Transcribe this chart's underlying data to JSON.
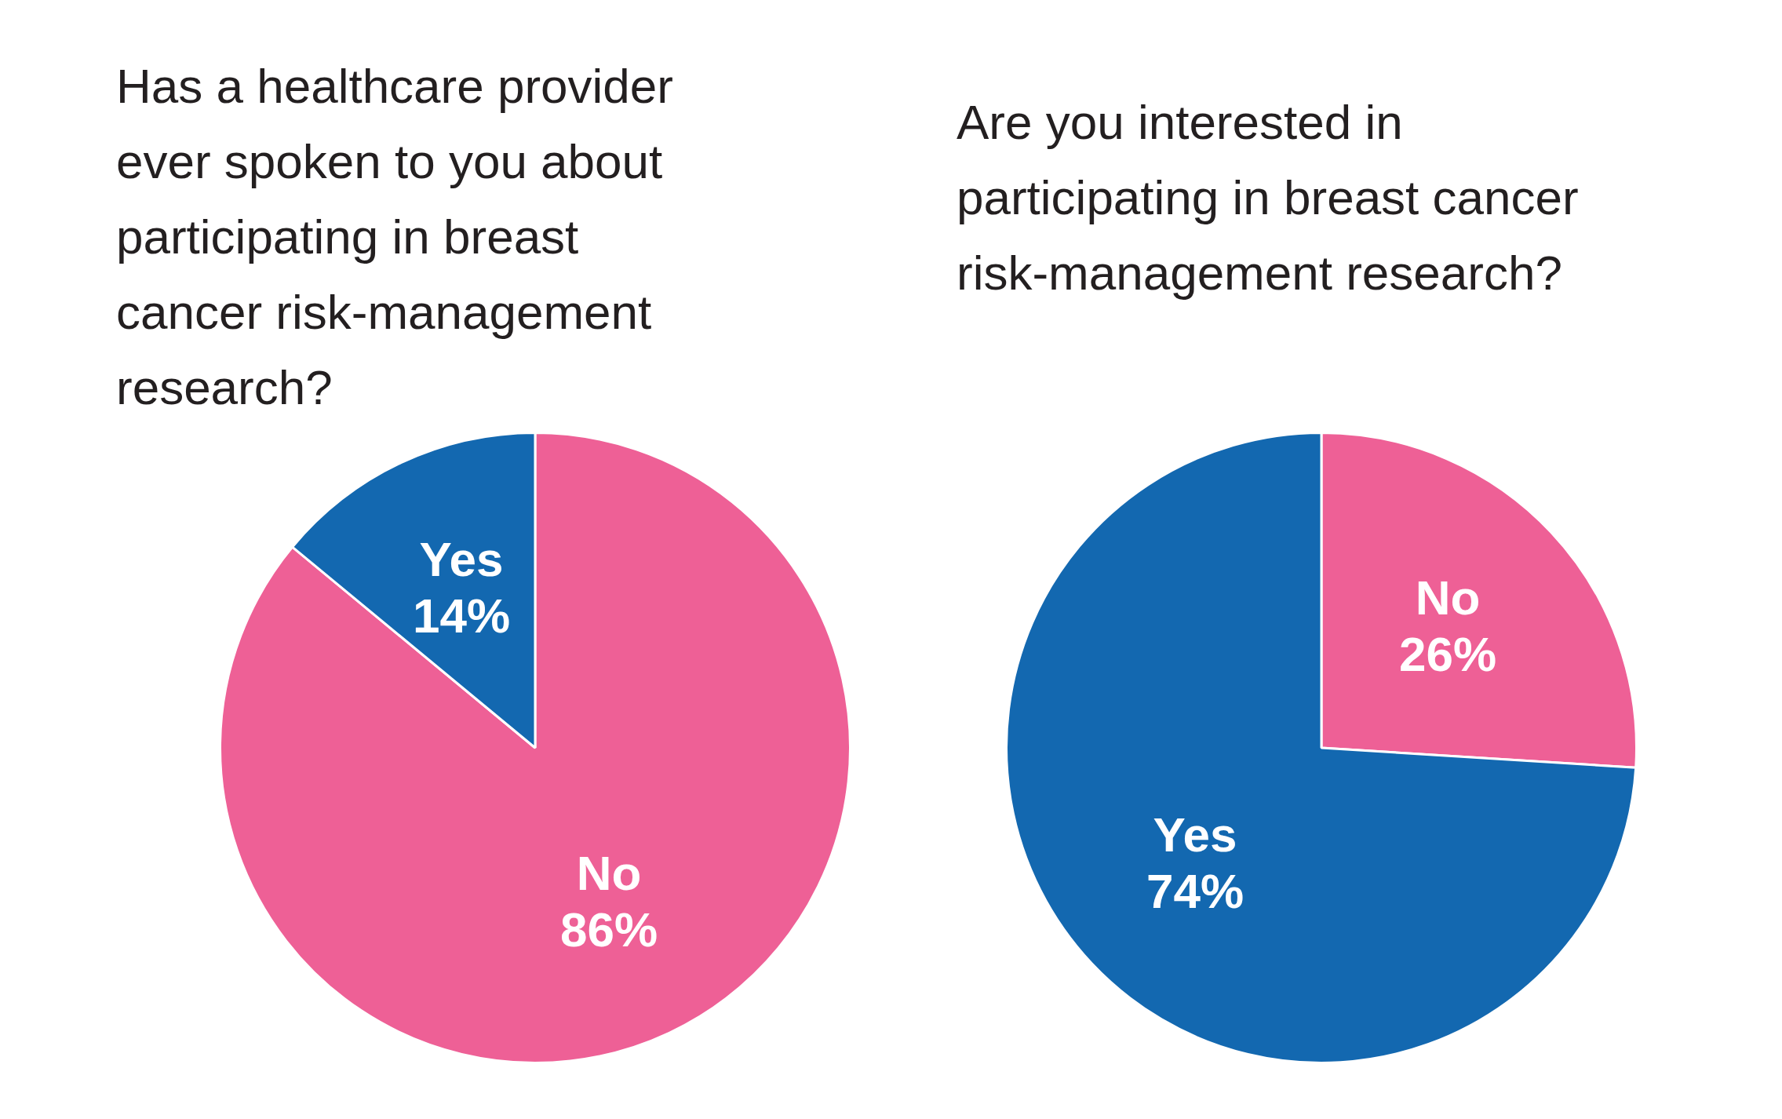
{
  "chart_data": [
    {
      "type": "pie",
      "title": "Has a healthcare provider ever spoken to you about participating in breast cancer risk-management research?",
      "categories": [
        "No",
        "Yes"
      ],
      "values": [
        86,
        14
      ],
      "value_labels": [
        "86%",
        "14%"
      ],
      "colors": [
        "#ee6096",
        "#1368b0"
      ],
      "legend": false
    },
    {
      "type": "pie",
      "title": "Are you interested in participating in breast cancer risk-management research?",
      "categories": [
        "No",
        "Yes"
      ],
      "values": [
        26,
        74
      ],
      "value_labels": [
        "26%",
        "74%"
      ],
      "colors": [
        "#ee6096",
        "#1368b0"
      ],
      "legend": false
    }
  ]
}
